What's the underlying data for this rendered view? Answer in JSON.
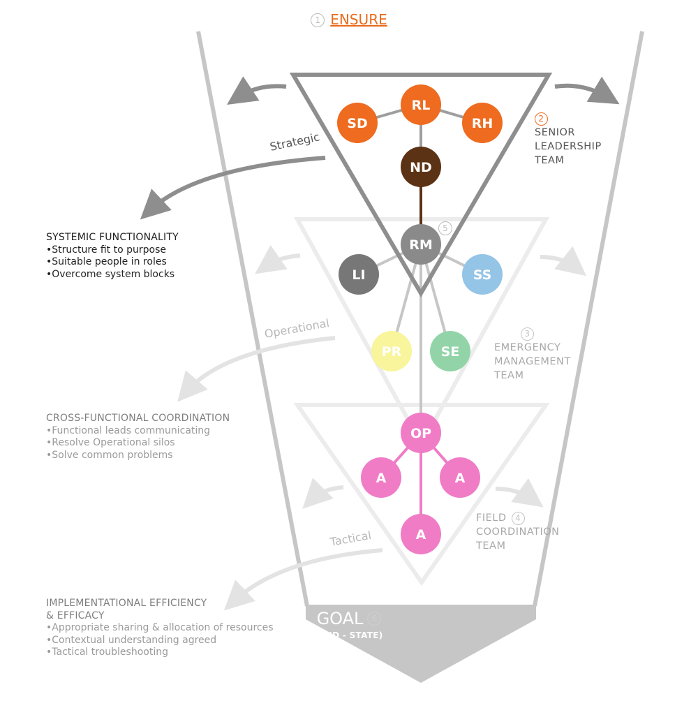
{
  "header": {
    "number": "1",
    "label": "ENSURE"
  },
  "colors": {
    "orange": "#ee6b1f",
    "brown": "#5c3214",
    "dark_gray": "#8a8a8a",
    "mid_gray": "#777777",
    "light_gray": "#e2e2e2",
    "sky": "#94c4e6",
    "yellow": "#f8f59c",
    "green": "#92d4a8",
    "pink": "#f07cc6"
  },
  "levels": {
    "strategic": "Strategic",
    "operational": "Operational",
    "tactical": "Tactical"
  },
  "teams": {
    "senior": {
      "number": "2",
      "line1": "SENIOR",
      "line2": "LEADERSHIP",
      "line3": "TEAM"
    },
    "emergency": {
      "number": "3",
      "line1": "EMERGENCY",
      "line2": "MANAGEMENT",
      "line3": "TEAM"
    },
    "field": {
      "number": "4",
      "line1": "FIELD",
      "line2": "COORDINATION",
      "line3": "TEAM"
    }
  },
  "rm_badge": "5",
  "blocks": {
    "systemic": {
      "heading": "SYSTEMIC FUNCTIONALITY",
      "items": [
        "Structure fit to purpose",
        "Suitable people in roles",
        "Overcome system blocks"
      ]
    },
    "cross": {
      "heading": "CROSS-FUNCTIONAL COORDINATION",
      "items": [
        "Functional leads communicating",
        "Resolve Operational silos",
        "Solve common problems"
      ]
    },
    "impl": {
      "heading1": "IMPLEMENTATIONAL EFFICIENCY",
      "heading2": "& EFFICACY",
      "items": [
        "Appropriate sharing & allocation of resources",
        "Contextual understanding agreed",
        "Tactical troubleshooting"
      ]
    }
  },
  "nodes": {
    "rl": "RL",
    "sd": "SD",
    "rh": "RH",
    "nd": "ND",
    "rm": "RM",
    "li": "LI",
    "ss": "SS",
    "pr": "PR",
    "se": "SE",
    "op": "OP",
    "a1": "A",
    "a2": "A",
    "a3": "A"
  },
  "goal": {
    "label": "GOAL",
    "number": "6",
    "sub": "(END - STATE)"
  }
}
